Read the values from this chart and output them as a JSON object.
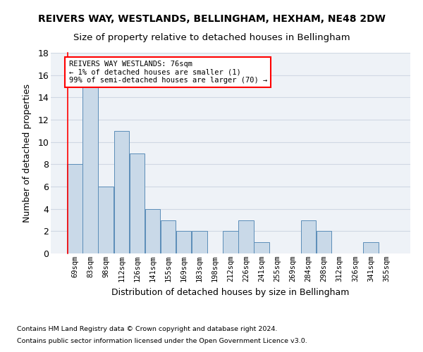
{
  "title": "REIVERS WAY, WESTLANDS, BELLINGHAM, HEXHAM, NE48 2DW",
  "subtitle": "Size of property relative to detached houses in Bellingham",
  "xlabel": "Distribution of detached houses by size in Bellingham",
  "ylabel": "Number of detached properties",
  "footnote1": "Contains HM Land Registry data © Crown copyright and database right 2024.",
  "footnote2": "Contains public sector information licensed under the Open Government Licence v3.0.",
  "categories": [
    "69sqm",
    "83sqm",
    "98sqm",
    "112sqm",
    "126sqm",
    "141sqm",
    "155sqm",
    "169sqm",
    "183sqm",
    "198sqm",
    "212sqm",
    "226sqm",
    "241sqm",
    "255sqm",
    "269sqm",
    "284sqm",
    "298sqm",
    "312sqm",
    "326sqm",
    "341sqm",
    "355sqm"
  ],
  "values": [
    8,
    15,
    6,
    11,
    9,
    4,
    3,
    2,
    2,
    0,
    2,
    3,
    1,
    0,
    0,
    3,
    2,
    0,
    0,
    1,
    0
  ],
  "bar_color": "#c9d9e8",
  "bar_edge_color": "#5b8db8",
  "annotation_title": "REIVERS WAY WESTLANDS: 76sqm",
  "annotation_line1": "← 1% of detached houses are smaller (1)",
  "annotation_line2": "99% of semi-detached houses are larger (70) →",
  "ylim": [
    0,
    18
  ],
  "yticks": [
    0,
    2,
    4,
    6,
    8,
    10,
    12,
    14,
    16,
    18
  ],
  "background_color": "#eef2f7",
  "grid_color": "#d0d8e4",
  "title_fontsize": 10,
  "subtitle_fontsize": 9.5,
  "ylabel_fontsize": 9,
  "xlabel_fontsize": 9,
  "footnote_fontsize": 6.8,
  "annot_fontsize": 7.5
}
